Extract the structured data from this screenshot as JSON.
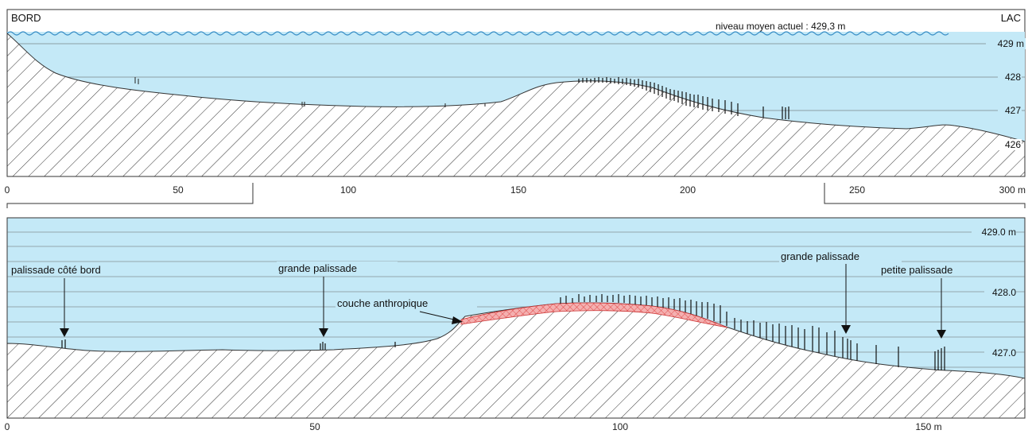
{
  "top_panel": {
    "left_label": "BORD",
    "right_label": "LAC",
    "water_level_label": "niveau moyen actuel : 429,3 m",
    "elevation_labels": [
      "429 m",
      "428",
      "427",
      "426"
    ],
    "x_axis_labels": [
      "0",
      "50",
      "100",
      "150",
      "200",
      "250",
      "300 m"
    ]
  },
  "bottom_panel": {
    "elevation_labels": [
      "429.0 m",
      "428.0",
      "427.0"
    ],
    "x_axis_labels": [
      "0",
      "50",
      "100",
      "150 m"
    ],
    "annotations": {
      "palissade_bord": "palissade côté bord",
      "grande_palissade_left": "grande palissade",
      "couche": "couche anthropique",
      "grande_palissade_right": "grande palissade",
      "petite_palissade": "petite palissade"
    }
  },
  "colors": {
    "water": "#c4e9f7",
    "wave": "#3a8fc6",
    "layer": "#f0a4a4",
    "layer_hatch": "#d04040",
    "ground_hatch": "#333333"
  }
}
